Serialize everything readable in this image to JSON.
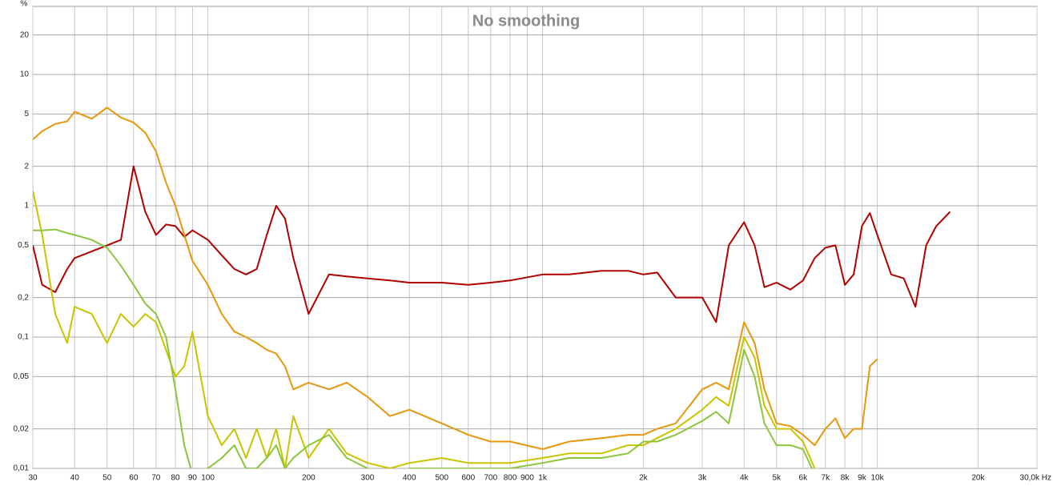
{
  "chart_data": {
    "type": "line",
    "title": "No smoothing",
    "y_unit": "%",
    "log_x": true,
    "log_y": true,
    "grid": true,
    "xlim": [
      30,
      30000
    ],
    "ylim": [
      0.01,
      33
    ],
    "xticks": [
      30,
      40,
      50,
      60,
      70,
      80,
      90,
      100,
      200,
      300,
      400,
      500,
      600,
      700,
      800,
      900,
      {
        "value": 1000,
        "label": "1k"
      },
      {
        "value": 2000,
        "label": "2k"
      },
      {
        "value": 3000,
        "label": "3k"
      },
      {
        "value": 4000,
        "label": "4k"
      },
      {
        "value": 5000,
        "label": "5k"
      },
      {
        "value": 6000,
        "label": "6k"
      },
      {
        "value": 7000,
        "label": "7k"
      },
      {
        "value": 8000,
        "label": "8k"
      },
      {
        "value": 9000,
        "label": "9k"
      },
      {
        "value": 10000,
        "label": "10k"
      },
      {
        "value": 20000,
        "label": "20k"
      },
      {
        "value": 30000,
        "label": "30,0k Hz"
      }
    ],
    "yticks": [
      20,
      10,
      5,
      2,
      1,
      {
        "value": 0.5,
        "label": "0,5"
      },
      {
        "value": 0.2,
        "label": "0,2"
      },
      {
        "value": 0.1,
        "label": "0,1"
      },
      {
        "value": 0.05,
        "label": "0,05"
      },
      {
        "value": 0.02,
        "label": "0,02"
      },
      {
        "value": 0.01,
        "label": "0,01"
      }
    ],
    "x": [
      30,
      32,
      35,
      38,
      40,
      45,
      50,
      55,
      60,
      65,
      70,
      75,
      80,
      85,
      90,
      100,
      110,
      120,
      130,
      140,
      150,
      160,
      170,
      180,
      200,
      230,
      260,
      300,
      350,
      400,
      500,
      600,
      700,
      800,
      1000,
      1200,
      1500,
      1800,
      2000,
      2200,
      2500,
      3000,
      3300,
      3600,
      4000,
      4300,
      4600,
      5000,
      5500,
      6000,
      6500,
      7000,
      7500,
      8000,
      8500,
      9000,
      9500,
      10000,
      11000,
      12000,
      13000,
      14000,
      15000,
      16500
    ],
    "series": [
      {
        "color": "#b00000",
        "values": [
          0.5,
          0.25,
          0.22,
          0.33,
          0.4,
          0.45,
          0.5,
          0.55,
          2.0,
          0.9,
          0.6,
          0.72,
          0.7,
          0.58,
          0.65,
          0.55,
          0.42,
          0.33,
          0.3,
          0.33,
          0.6,
          1.0,
          0.8,
          0.4,
          0.15,
          0.3,
          0.29,
          0.28,
          0.27,
          0.26,
          0.26,
          0.25,
          0.26,
          0.27,
          0.3,
          0.3,
          0.32,
          0.32,
          0.3,
          0.31,
          0.2,
          0.2,
          0.13,
          0.5,
          0.75,
          0.5,
          0.24,
          0.26,
          0.23,
          0.27,
          0.4,
          0.48,
          0.5,
          0.25,
          0.3,
          0.7,
          0.88,
          0.6,
          0.3,
          0.28,
          0.17,
          0.5,
          0.7,
          0.9
        ]
      },
      {
        "color": "#e8960a",
        "values": [
          3.2,
          3.7,
          4.2,
          4.4,
          5.2,
          4.6,
          5.6,
          4.7,
          4.3,
          3.6,
          2.6,
          1.5,
          1.0,
          0.6,
          0.38,
          0.25,
          0.15,
          0.11,
          0.1,
          0.09,
          0.08,
          0.075,
          0.06,
          0.04,
          0.045,
          0.04,
          0.045,
          0.035,
          0.025,
          0.028,
          0.022,
          0.018,
          0.016,
          0.016,
          0.014,
          0.016,
          0.017,
          0.018,
          0.018,
          0.02,
          0.022,
          0.04,
          0.045,
          0.04,
          0.13,
          0.09,
          0.04,
          0.022,
          0.021,
          0.018,
          0.015,
          0.02,
          0.024,
          0.017,
          0.02,
          0.02,
          0.06,
          0.068,
          null,
          null,
          null,
          null,
          null,
          null
        ]
      },
      {
        "color": "#c8c400",
        "values": [
          1.3,
          0.6,
          0.15,
          0.09,
          0.17,
          0.15,
          0.09,
          0.15,
          0.12,
          0.15,
          0.13,
          0.08,
          0.05,
          0.06,
          0.11,
          0.025,
          0.015,
          0.02,
          0.012,
          0.02,
          0.012,
          0.02,
          0.01,
          0.025,
          0.012,
          0.02,
          0.013,
          0.011,
          0.01,
          0.011,
          0.012,
          0.011,
          0.011,
          0.011,
          0.012,
          0.013,
          0.013,
          0.015,
          0.015,
          0.017,
          0.02,
          0.028,
          0.035,
          0.03,
          0.1,
          0.07,
          0.03,
          0.02,
          0.02,
          0.016,
          0.01,
          null,
          null,
          null,
          null,
          null,
          null,
          null,
          null,
          null,
          null,
          null,
          null,
          null
        ]
      },
      {
        "color": "#8cc43c",
        "values": [
          0.65,
          0.65,
          0.66,
          0.62,
          0.6,
          0.55,
          0.48,
          0.35,
          0.25,
          0.18,
          0.15,
          0.1,
          0.04,
          0.015,
          0.009,
          0.01,
          0.012,
          0.015,
          0.01,
          0.01,
          0.012,
          0.015,
          0.01,
          0.012,
          0.015,
          0.018,
          0.012,
          0.01,
          0.009,
          0.01,
          0.01,
          0.01,
          0.01,
          0.01,
          0.011,
          0.012,
          0.012,
          0.013,
          0.016,
          0.016,
          0.018,
          0.023,
          0.027,
          0.022,
          0.08,
          0.05,
          0.022,
          0.015,
          0.015,
          0.014,
          0.009,
          null,
          null,
          null,
          null,
          null,
          null,
          null,
          null,
          null,
          null,
          null,
          null,
          null
        ]
      }
    ]
  }
}
